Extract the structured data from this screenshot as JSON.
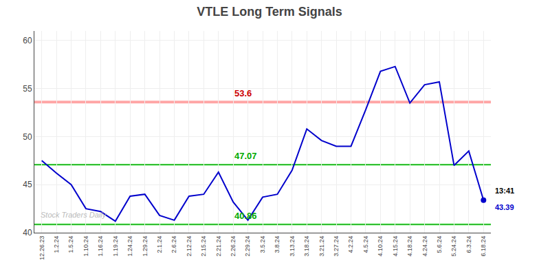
{
  "chart_data": {
    "type": "line",
    "title": "VTLE Long Term Signals",
    "categories": [
      "12.26.23",
      "1.2.24",
      "1.5.24",
      "1.10.24",
      "1.16.24",
      "1.19.24",
      "1.24.24",
      "1.29.24",
      "2.1.24",
      "2.6.24",
      "2.12.24",
      "2.15.24",
      "2.21.24",
      "2.26.24",
      "2.29.24",
      "3.5.24",
      "3.8.24",
      "3.13.24",
      "3.18.24",
      "3.21.24",
      "3.27.24",
      "4.2.24",
      "4.5.24",
      "4.10.24",
      "4.15.24",
      "4.18.24",
      "4.24.24",
      "5.6.24",
      "5.24.24",
      "6.3.24",
      "6.18.24"
    ],
    "values": [
      47.5,
      46.2,
      45.0,
      42.5,
      42.2,
      41.2,
      43.8,
      44.0,
      41.8,
      41.3,
      43.8,
      44.0,
      46.3,
      43.2,
      41.3,
      43.7,
      44.0,
      46.5,
      50.8,
      49.6,
      49.0,
      49.0,
      52.8,
      56.8,
      57.3,
      53.5,
      55.4,
      55.7,
      47.0,
      48.5,
      43.39
    ],
    "color": "#0000cc",
    "ylim": [
      40,
      61
    ],
    "yticks": [
      40,
      45,
      50,
      55,
      60
    ],
    "grid": true,
    "hlines": [
      {
        "value": 53.6,
        "label": "53.6",
        "color": "#ff8888",
        "label_color": "#cc0000",
        "band": [
          53.42,
          53.78
        ],
        "band_color": "#ffcccc"
      },
      {
        "value": 47.07,
        "label": "47.07",
        "color": "#00aa00",
        "label_color": "#00aa00",
        "band": [
          46.95,
          47.19
        ],
        "band_color": "#ccffcc"
      },
      {
        "value": 40.86,
        "label": "40.86",
        "color": "#00aa00",
        "label_color": "#00aa00",
        "band": [
          40.74,
          40.98
        ],
        "band_color": "#ccffcc"
      }
    ],
    "last_point": {
      "time": "13:41",
      "value_label": "43.39"
    },
    "watermark": {
      "text": "Stock Traders Daily",
      "color": "#bbbbbb"
    }
  }
}
